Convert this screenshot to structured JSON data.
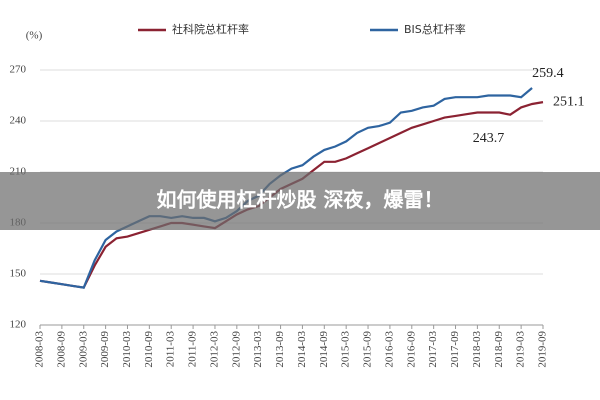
{
  "chart_data": {
    "type": "line",
    "y_unit": "(%)",
    "categories": [
      "2008-03",
      null,
      "2008-09",
      null,
      "2009-03",
      null,
      "2009-09",
      null,
      "2010-03",
      null,
      "2010-09",
      null,
      "2011-03",
      null,
      "2011-09",
      null,
      "2012-03",
      null,
      "2012-09",
      null,
      "2013-03",
      null,
      "2013-09",
      null,
      "2014-03",
      null,
      "2014-09",
      null,
      "2015-03",
      null,
      "2015-09",
      null,
      "2016-03",
      null,
      "2016-09",
      null,
      "2017-03",
      null,
      "2017-09",
      null,
      "2018-03",
      null,
      "2018-09",
      null,
      "2019-03",
      null,
      "2019-09"
    ],
    "series": [
      {
        "name": "社科院总杠杆率",
        "color": "#8b2232",
        "values": [
          146,
          145,
          144,
          143,
          142,
          155,
          166,
          171,
          172,
          174,
          176,
          178,
          180,
          180,
          179,
          178,
          177,
          181,
          185,
          188,
          190,
          195,
          200,
          203,
          206,
          211,
          216,
          216,
          218,
          221,
          224,
          227,
          230,
          233,
          236,
          238,
          240,
          242,
          243,
          244,
          245,
          245,
          245,
          243.7,
          248,
          250,
          251.1
        ]
      },
      {
        "name": "BIS总杠杆率",
        "color": "#2e64a0",
        "values": [
          146,
          145,
          144,
          143,
          142,
          158,
          170,
          175,
          178,
          181,
          184,
          184,
          183,
          184,
          183,
          183,
          181,
          183,
          187,
          193,
          196,
          203,
          208,
          212,
          214,
          219,
          223,
          225,
          228,
          233,
          236,
          237,
          239,
          245,
          246,
          248,
          249,
          253,
          254,
          254,
          254,
          255,
          255,
          255,
          254,
          259.4,
          null
        ]
      }
    ],
    "annotations": [
      {
        "text": "259.4",
        "series": 1,
        "index": 45
      },
      {
        "text": "251.1",
        "series": 0,
        "index": 46
      },
      {
        "text": "243.7",
        "series": 0,
        "index": 43
      }
    ],
    "ylim": [
      120,
      270
    ],
    "yticks": [
      120,
      150,
      180,
      210,
      240,
      270
    ],
    "grid": true,
    "overlay_text": "如何使用杠杆炒股 深夜，爆雷！"
  }
}
